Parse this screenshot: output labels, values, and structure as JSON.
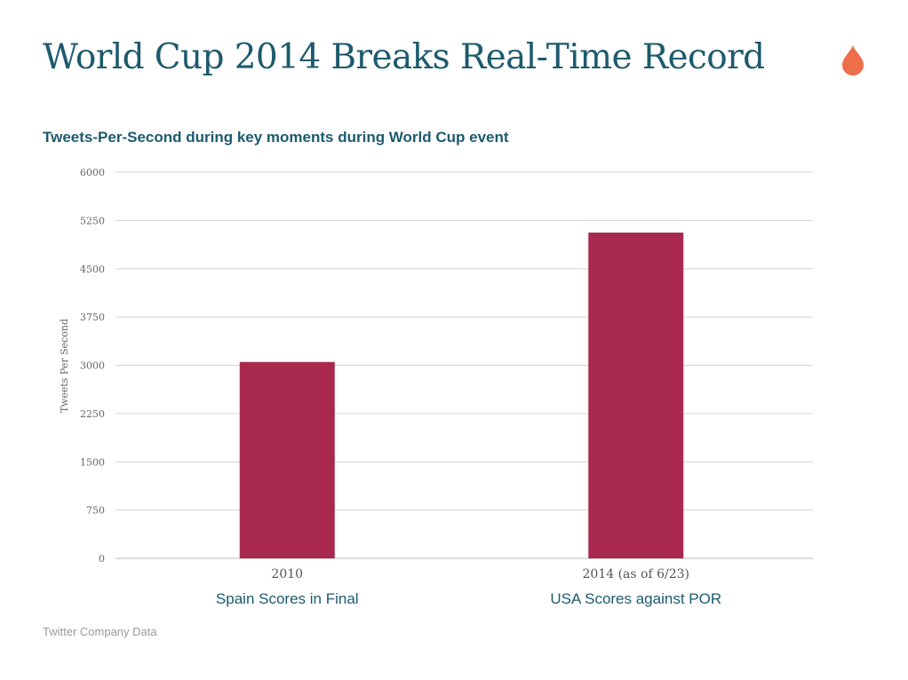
{
  "header": {
    "title": "World Cup 2014 Breaks Real-Time Record",
    "logo_icon": "flame-drop-icon",
    "logo_color": "#ee6d4a"
  },
  "footer": {
    "source": "Twitter Company Data"
  },
  "chart_data": {
    "type": "bar",
    "title": "Tweets-Per-Second during key moments during World Cup event",
    "ylabel": "Tweets Per Second",
    "xlabel": "",
    "categories": [
      "2010",
      "2014 (as of 6/23)"
    ],
    "category_sublabels": [
      "Spain Scores in Final",
      "USA Scores against POR"
    ],
    "values": [
      3052,
      5062
    ],
    "ylim": [
      0,
      6000
    ],
    "yticks": [
      0,
      750,
      1500,
      2250,
      3000,
      3750,
      4500,
      5250,
      6000
    ],
    "grid": true,
    "legend": "none",
    "bar_color": "#a8294d",
    "title_color": "#1d5a6e"
  }
}
